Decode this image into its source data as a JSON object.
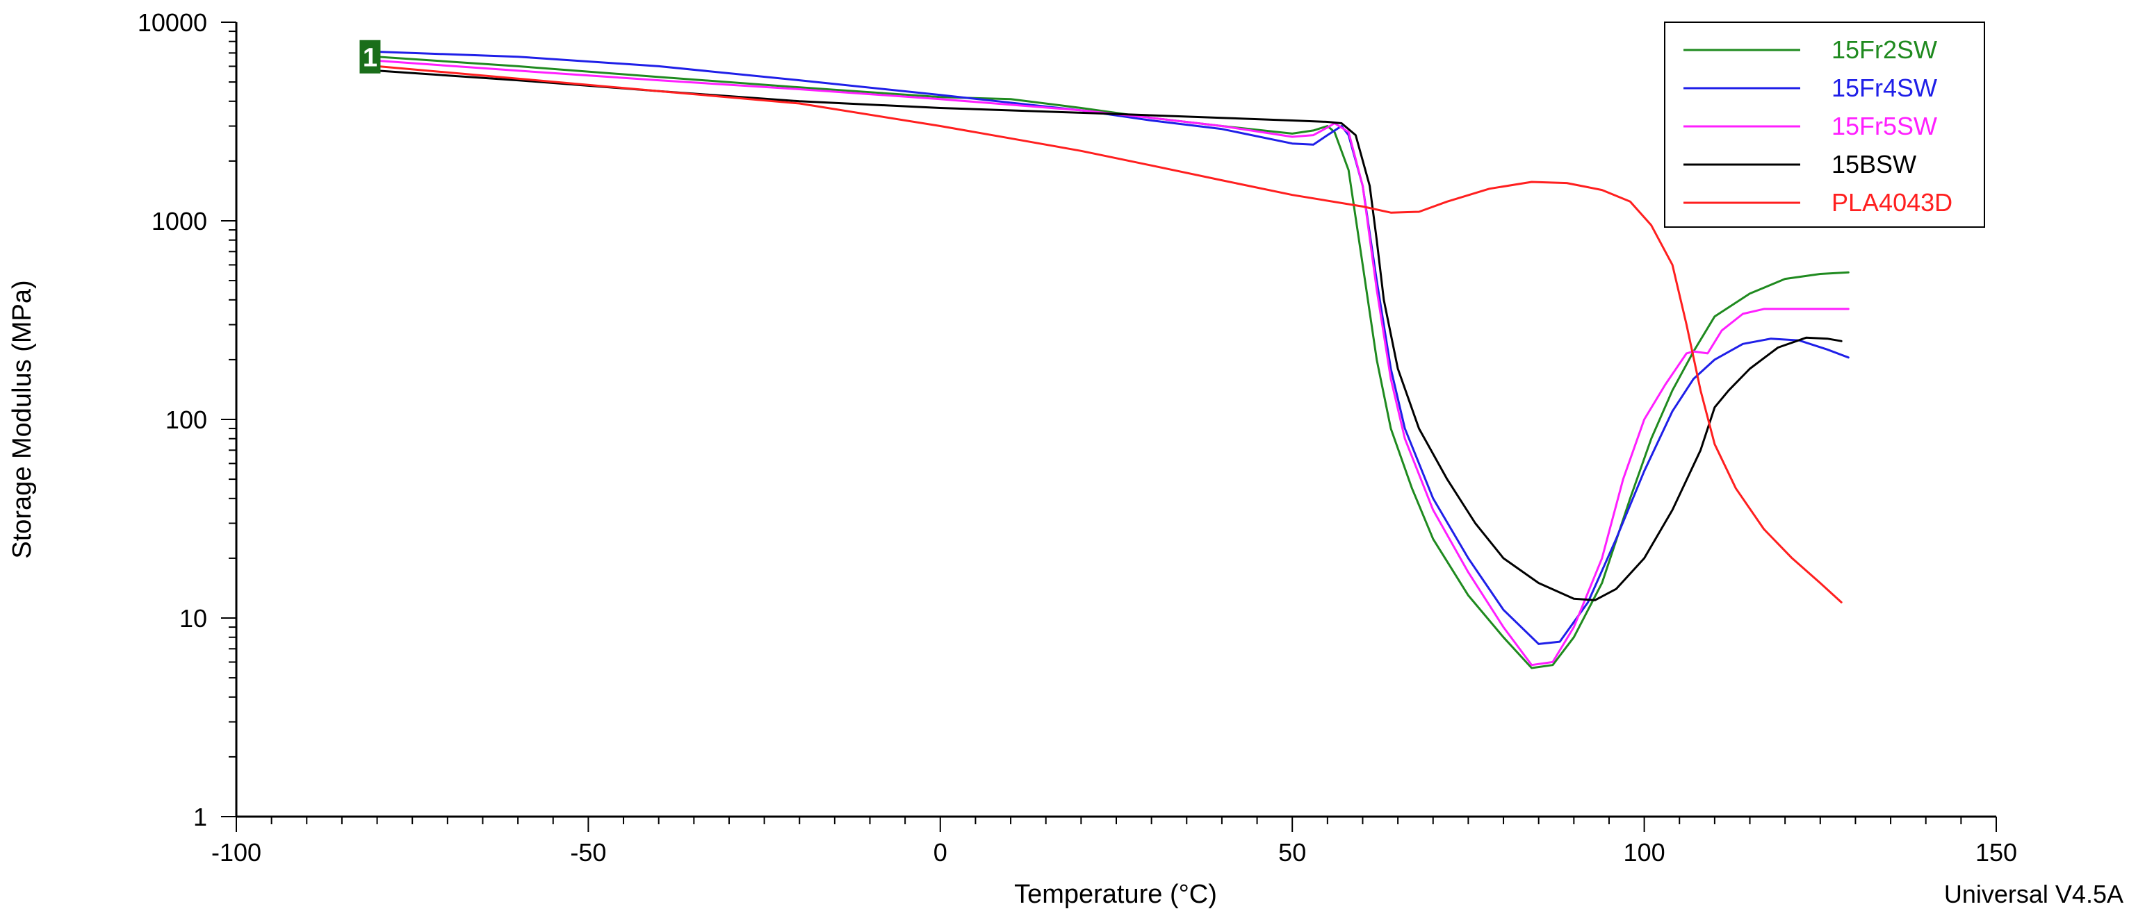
{
  "chart_data": {
    "type": "line",
    "title": "",
    "xlabel": "Temperature (°C)",
    "ylabel": "Storage Modulus (MPa)",
    "xlim": [
      -100,
      150
    ],
    "ylim": [
      1,
      10000
    ],
    "yscale": "log",
    "x_ticks": [
      "-100",
      "-50",
      "0",
      "50",
      "100",
      "150"
    ],
    "y_ticks": [
      "1",
      "10",
      "100",
      "1000",
      "10000"
    ],
    "grid": false,
    "legend_position": "top-right",
    "marker_label": "1",
    "footer": "Universal V4.5A",
    "series": [
      {
        "name": "15Fr2SW",
        "color": "#1f8a1f",
        "points": [
          [
            -80,
            6700
          ],
          [
            -60,
            6000
          ],
          [
            -40,
            5300
          ],
          [
            -20,
            4700
          ],
          [
            0,
            4200
          ],
          [
            10,
            4100
          ],
          [
            20,
            3700
          ],
          [
            30,
            3300
          ],
          [
            40,
            3000
          ],
          [
            50,
            2750
          ],
          [
            53,
            2850
          ],
          [
            55,
            3000
          ],
          [
            56,
            2800
          ],
          [
            58,
            1800
          ],
          [
            60,
            600
          ],
          [
            62,
            200
          ],
          [
            64,
            90
          ],
          [
            67,
            45
          ],
          [
            70,
            25
          ],
          [
            75,
            13
          ],
          [
            80,
            8
          ],
          [
            84,
            5.6
          ],
          [
            87,
            5.8
          ],
          [
            90,
            8
          ],
          [
            94,
            15
          ],
          [
            98,
            40
          ],
          [
            101,
            80
          ],
          [
            104,
            140
          ],
          [
            107,
            220
          ],
          [
            110,
            330
          ],
          [
            115,
            430
          ],
          [
            120,
            510
          ],
          [
            125,
            540
          ],
          [
            129,
            550
          ]
        ]
      },
      {
        "name": "15Fr4SW",
        "color": "#1f1fe8",
        "points": [
          [
            -80,
            7100
          ],
          [
            -60,
            6700
          ],
          [
            -40,
            6000
          ],
          [
            -20,
            5100
          ],
          [
            0,
            4300
          ],
          [
            20,
            3600
          ],
          [
            30,
            3200
          ],
          [
            40,
            2900
          ],
          [
            50,
            2450
          ],
          [
            53,
            2420
          ],
          [
            55,
            2700
          ],
          [
            57,
            3000
          ],
          [
            58,
            2700
          ],
          [
            60,
            1500
          ],
          [
            62,
            500
          ],
          [
            64,
            180
          ],
          [
            66,
            90
          ],
          [
            70,
            40
          ],
          [
            75,
            20
          ],
          [
            80,
            11
          ],
          [
            85,
            7.4
          ],
          [
            88,
            7.6
          ],
          [
            92,
            12
          ],
          [
            96,
            25
          ],
          [
            100,
            55
          ],
          [
            104,
            110
          ],
          [
            107,
            160
          ],
          [
            110,
            200
          ],
          [
            114,
            240
          ],
          [
            118,
            255
          ],
          [
            122,
            250
          ],
          [
            126,
            225
          ],
          [
            129,
            205
          ]
        ]
      },
      {
        "name": "15Fr5SW",
        "color": "#ff1fff",
        "points": [
          [
            -80,
            6400
          ],
          [
            -60,
            5700
          ],
          [
            -40,
            5100
          ],
          [
            -20,
            4600
          ],
          [
            0,
            4100
          ],
          [
            20,
            3600
          ],
          [
            30,
            3300
          ],
          [
            40,
            3000
          ],
          [
            50,
            2650
          ],
          [
            53,
            2700
          ],
          [
            55,
            2950
          ],
          [
            56,
            3100
          ],
          [
            58,
            2800
          ],
          [
            60,
            1500
          ],
          [
            62,
            450
          ],
          [
            64,
            160
          ],
          [
            66,
            80
          ],
          [
            70,
            35
          ],
          [
            75,
            17
          ],
          [
            80,
            9
          ],
          [
            84,
            5.8
          ],
          [
            87,
            6
          ],
          [
            90,
            9
          ],
          [
            94,
            20
          ],
          [
            97,
            50
          ],
          [
            100,
            100
          ],
          [
            103,
            150
          ],
          [
            106,
            215
          ],
          [
            107,
            220
          ],
          [
            109,
            215
          ],
          [
            111,
            280
          ],
          [
            114,
            340
          ],
          [
            117,
            360
          ],
          [
            122,
            360
          ],
          [
            129,
            360
          ]
        ]
      },
      {
        "name": "15BSW",
        "color": "#000000",
        "points": [
          [
            -80,
            5700
          ],
          [
            -60,
            5100
          ],
          [
            -40,
            4500
          ],
          [
            -20,
            4000
          ],
          [
            0,
            3700
          ],
          [
            20,
            3500
          ],
          [
            40,
            3300
          ],
          [
            50,
            3200
          ],
          [
            55,
            3150
          ],
          [
            57,
            3100
          ],
          [
            59,
            2700
          ],
          [
            61,
            1500
          ],
          [
            62,
            800
          ],
          [
            63,
            400
          ],
          [
            65,
            180
          ],
          [
            68,
            90
          ],
          [
            72,
            50
          ],
          [
            76,
            30
          ],
          [
            80,
            20
          ],
          [
            85,
            15
          ],
          [
            90,
            12.5
          ],
          [
            93,
            12.3
          ],
          [
            96,
            14
          ],
          [
            100,
            20
          ],
          [
            104,
            35
          ],
          [
            108,
            70
          ],
          [
            110,
            115
          ],
          [
            112,
            140
          ],
          [
            115,
            180
          ],
          [
            119,
            230
          ],
          [
            123,
            258
          ],
          [
            126,
            255
          ],
          [
            128,
            248
          ]
        ]
      },
      {
        "name": "PLA4043D",
        "color": "#ff1f1f",
        "points": [
          [
            -80,
            6000
          ],
          [
            -60,
            5200
          ],
          [
            -40,
            4500
          ],
          [
            -20,
            3900
          ],
          [
            0,
            3000
          ],
          [
            10,
            2600
          ],
          [
            20,
            2250
          ],
          [
            30,
            1900
          ],
          [
            40,
            1600
          ],
          [
            50,
            1350
          ],
          [
            60,
            1180
          ],
          [
            64,
            1100
          ],
          [
            68,
            1110
          ],
          [
            72,
            1250
          ],
          [
            78,
            1450
          ],
          [
            84,
            1570
          ],
          [
            89,
            1550
          ],
          [
            94,
            1430
          ],
          [
            98,
            1250
          ],
          [
            101,
            950
          ],
          [
            104,
            600
          ],
          [
            106,
            300
          ],
          [
            108,
            140
          ],
          [
            110,
            75
          ],
          [
            113,
            45
          ],
          [
            117,
            28
          ],
          [
            121,
            20
          ],
          [
            125,
            15
          ],
          [
            128,
            12
          ]
        ]
      }
    ]
  }
}
